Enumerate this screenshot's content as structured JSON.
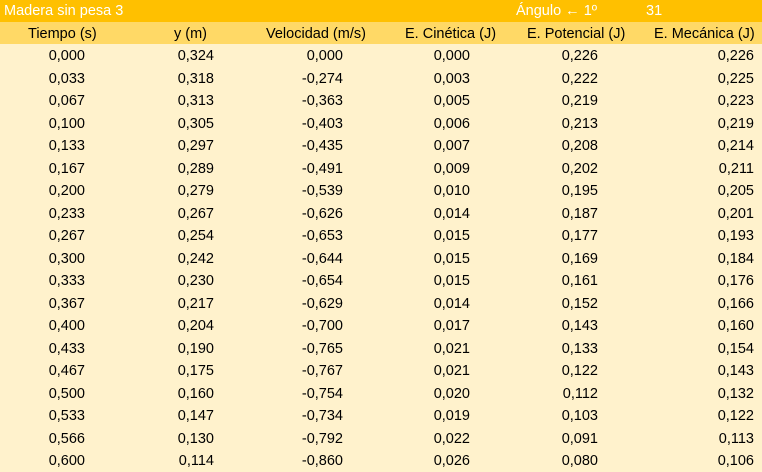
{
  "sheet": {
    "title": "Madera sin pesa 3",
    "angle_label": "Ángulo ← 1º",
    "angle_value": "31",
    "headers": [
      "Tiempo (s)",
      "y (m)",
      "Velocidad (m/s)",
      "E. Cinética (J)",
      "E. Potencial (J)",
      "E. Mecánica (J)"
    ],
    "rows": [
      [
        "0,000",
        "0,324",
        "0,000",
        "0,000",
        "0,226",
        "0,226"
      ],
      [
        "0,033",
        "0,318",
        "-0,274",
        "0,003",
        "0,222",
        "0,225"
      ],
      [
        "0,067",
        "0,313",
        "-0,363",
        "0,005",
        "0,219",
        "0,223"
      ],
      [
        "0,100",
        "0,305",
        "-0,403",
        "0,006",
        "0,213",
        "0,219"
      ],
      [
        "0,133",
        "0,297",
        "-0,435",
        "0,007",
        "0,208",
        "0,214"
      ],
      [
        "0,167",
        "0,289",
        "-0,491",
        "0,009",
        "0,202",
        "0,211"
      ],
      [
        "0,200",
        "0,279",
        "-0,539",
        "0,010",
        "0,195",
        "0,205"
      ],
      [
        "0,233",
        "0,267",
        "-0,626",
        "0,014",
        "0,187",
        "0,201"
      ],
      [
        "0,267",
        "0,254",
        "-0,653",
        "0,015",
        "0,177",
        "0,193"
      ],
      [
        "0,300",
        "0,242",
        "-0,644",
        "0,015",
        "0,169",
        "0,184"
      ],
      [
        "0,333",
        "0,230",
        "-0,654",
        "0,015",
        "0,161",
        "0,176"
      ],
      [
        "0,367",
        "0,217",
        "-0,629",
        "0,014",
        "0,152",
        "0,166"
      ],
      [
        "0,400",
        "0,204",
        "-0,700",
        "0,017",
        "0,143",
        "0,160"
      ],
      [
        "0,433",
        "0,190",
        "-0,765",
        "0,021",
        "0,133",
        "0,154"
      ],
      [
        "0,467",
        "0,175",
        "-0,767",
        "0,021",
        "0,122",
        "0,143"
      ],
      [
        "0,500",
        "0,160",
        "-0,754",
        "0,020",
        "0,112",
        "0,132"
      ],
      [
        "0,533",
        "0,147",
        "-0,734",
        "0,019",
        "0,103",
        "0,122"
      ],
      [
        "0,566",
        "0,130",
        "-0,792",
        "0,022",
        "0,091",
        "0,113"
      ],
      [
        "0,600",
        "0,114",
        "-0,860",
        "0,026",
        "0,080",
        "0,106"
      ]
    ]
  },
  "colors": {
    "title_bg": "#ffc000",
    "header_bg": "#ffd966",
    "body_bg": "#fff2cc",
    "title_text": "#ffffff"
  }
}
